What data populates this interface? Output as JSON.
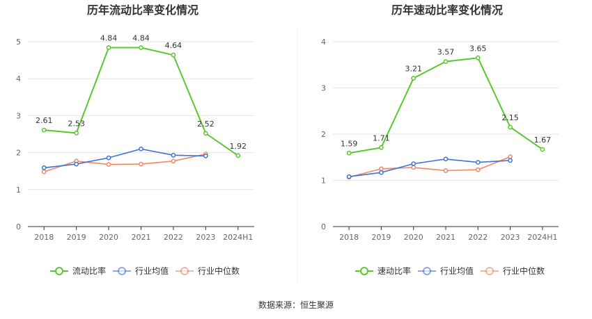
{
  "chart_data": [
    {
      "type": "line",
      "title": "历年流动比率变化情况",
      "categories": [
        "2018",
        "2019",
        "2020",
        "2021",
        "2022",
        "2023",
        "2024H1"
      ],
      "ylim": [
        0,
        5
      ],
      "yticks": [
        "0",
        "1",
        "2",
        "3",
        "4",
        "5"
      ],
      "series": [
        {
          "name": "流动比率",
          "color": "#5ac72b",
          "values": [
            2.61,
            2.53,
            4.84,
            4.84,
            4.64,
            2.52,
            1.92
          ],
          "labels": [
            "2.61",
            "2.53",
            "4.84",
            "4.84",
            "4.64",
            "2.52",
            "1.92"
          ]
        },
        {
          "name": "行业均值",
          "color": "#3f72d9",
          "values": [
            1.59,
            1.69,
            1.86,
            2.1,
            1.93,
            1.91,
            null
          ]
        },
        {
          "name": "行业中位数",
          "color": "#f0875f",
          "values": [
            1.48,
            1.77,
            1.68,
            1.69,
            1.77,
            1.96,
            null
          ]
        }
      ]
    },
    {
      "type": "line",
      "title": "历年速动比率变化情况",
      "categories": [
        "2018",
        "2019",
        "2020",
        "2021",
        "2022",
        "2023",
        "2024H1"
      ],
      "ylim": [
        0,
        4
      ],
      "yticks": [
        "0",
        "1",
        "2",
        "3",
        "4"
      ],
      "series": [
        {
          "name": "速动比率",
          "color": "#5ac72b",
          "values": [
            1.59,
            1.71,
            3.21,
            3.57,
            3.65,
            2.15,
            1.67
          ],
          "labels": [
            "1.59",
            "1.71",
            "3.21",
            "3.57",
            "3.65",
            "2.15",
            "1.67"
          ]
        },
        {
          "name": "行业均值",
          "color": "#3f72d9",
          "values": [
            1.08,
            1.17,
            1.36,
            1.46,
            1.39,
            1.43,
            null
          ]
        },
        {
          "name": "行业中位数",
          "color": "#f0875f",
          "values": [
            1.07,
            1.25,
            1.28,
            1.21,
            1.23,
            1.51,
            null
          ]
        }
      ]
    }
  ],
  "footer": {
    "source": "数据来源：恒生聚源"
  }
}
